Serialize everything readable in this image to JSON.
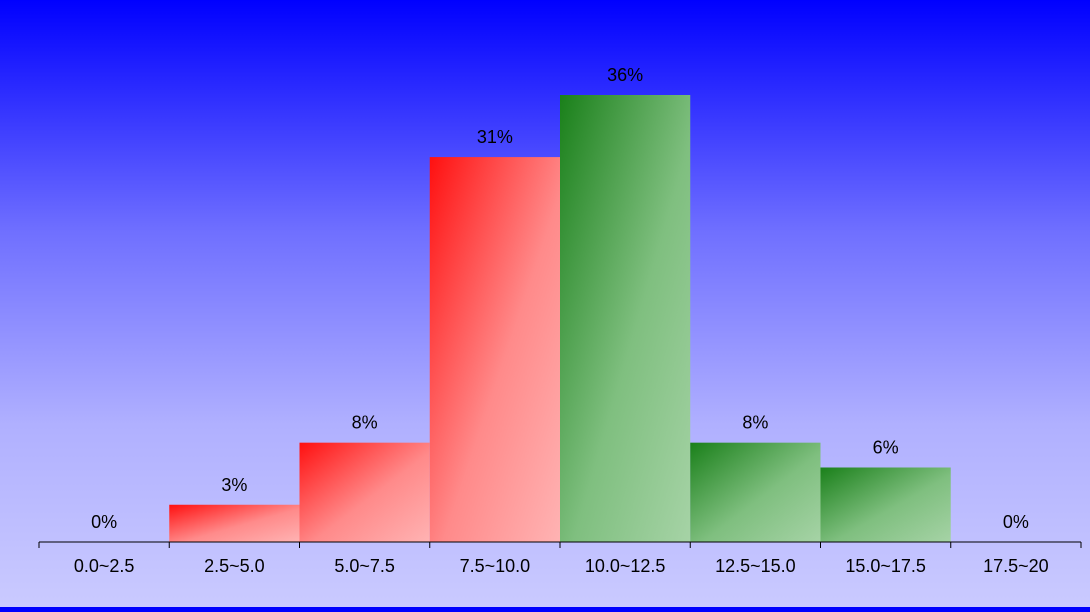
{
  "chart_data": {
    "type": "bar",
    "categories": [
      "0.0~2.5",
      "2.5~5.0",
      "5.0~7.5",
      "7.5~10.0",
      "10.0~12.5",
      "12.5~15.0",
      "15.0~17.5",
      "17.5~20"
    ],
    "values": [
      0,
      3,
      8,
      31,
      36,
      8,
      6,
      0
    ],
    "value_labels": [
      "0%",
      "3%",
      "8%",
      "31%",
      "36%",
      "8%",
      "6%",
      "0%"
    ],
    "bar_colors": [
      "#ff1010",
      "#ff1010",
      "#ff1010",
      "#ff1010",
      "#1a801a",
      "#1a801a",
      "#1a801a",
      "#1a801a"
    ],
    "ylim": [
      0,
      36
    ],
    "grid": false,
    "legend": "none"
  }
}
